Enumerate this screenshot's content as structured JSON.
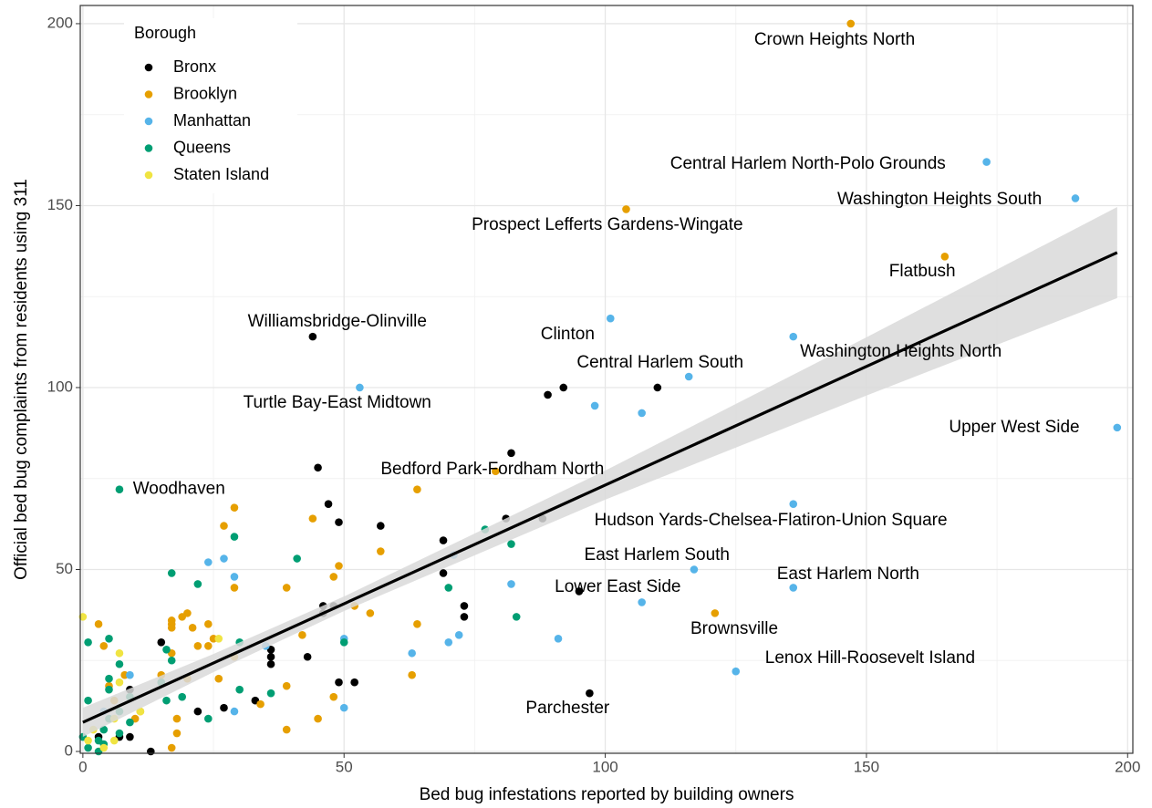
{
  "chart_data": {
    "type": "scatter",
    "x_label": "Bed bug infestations reported by building owners",
    "y_label": "Official bed bug complaints from residents using 311",
    "xlim": [
      -0.5,
      201
    ],
    "ylim": [
      -0.5,
      205
    ],
    "xticks": [
      0,
      50,
      100,
      150,
      200
    ],
    "yticks": [
      0,
      50,
      100,
      150,
      200
    ],
    "minor_xticks": [
      25,
      75,
      125,
      175
    ],
    "minor_yticks": [
      25,
      75,
      125,
      175
    ],
    "grid": true,
    "legend_title": "Borough",
    "legend_position": "top-left",
    "series": [
      {
        "name": "Bronx",
        "color": "#000000",
        "x": [
          44,
          97,
          95,
          89,
          92,
          110,
          82,
          45,
          47,
          49,
          57,
          81,
          88,
          69,
          69,
          46,
          46,
          48,
          73,
          73,
          43,
          36,
          36,
          36,
          49,
          52,
          27,
          22,
          33,
          15,
          9,
          9,
          3,
          7,
          13
        ],
        "y": [
          114,
          16,
          44,
          98,
          100,
          100,
          82,
          78,
          68,
          63,
          62,
          64,
          64,
          58,
          49,
          40,
          38,
          40,
          40,
          37,
          26,
          26,
          24,
          28,
          19,
          19,
          12,
          11,
          14,
          30,
          17,
          4,
          4,
          4,
          0
        ]
      },
      {
        "name": "Brooklyn",
        "color": "#E69F00",
        "x": [
          147,
          104,
          165,
          79,
          121,
          64,
          29,
          27,
          44,
          57,
          49,
          48,
          52,
          64,
          55,
          39,
          42,
          39,
          39,
          45,
          48,
          63,
          29,
          17,
          17,
          19,
          17,
          20,
          21,
          22,
          24,
          25,
          26,
          24,
          29,
          15,
          17,
          20,
          18,
          18,
          8,
          5,
          3,
          4,
          6,
          10,
          11,
          17,
          34
        ],
        "y": [
          200,
          149,
          136,
          77,
          38,
          72,
          67,
          62,
          64,
          55,
          51,
          48,
          40,
          35,
          38,
          45,
          32,
          18,
          6,
          9,
          15,
          21,
          45,
          35,
          36,
          37,
          34,
          38,
          34,
          29,
          35,
          31,
          20,
          29,
          26,
          21,
          27,
          20,
          9,
          5,
          21,
          18,
          35,
          29,
          14,
          9,
          11,
          1,
          13
        ]
      },
      {
        "name": "Manhattan",
        "color": "#56B4E9",
        "x": [
          173,
          190,
          101,
          136,
          116,
          53,
          198,
          136,
          117,
          136,
          125,
          98,
          107,
          71,
          82,
          72,
          70,
          91,
          107,
          63,
          50,
          50,
          24,
          27,
          29,
          29,
          35,
          9,
          4
        ],
        "y": [
          162,
          152,
          119,
          114,
          103,
          100,
          89,
          68,
          50,
          45,
          22,
          95,
          93,
          54,
          46,
          32,
          30,
          31,
          41,
          27,
          31,
          12,
          52,
          53,
          48,
          11,
          29,
          21,
          11
        ]
      },
      {
        "name": "Queens",
        "color": "#009E73",
        "x": [
          7,
          77,
          82,
          83,
          70,
          41,
          29,
          22,
          17,
          50,
          30,
          36,
          24,
          30,
          16,
          16,
          17,
          19,
          15,
          9,
          7,
          7,
          5,
          5,
          1,
          5,
          1,
          5,
          4,
          3,
          0,
          1,
          7,
          9,
          3,
          4
        ],
        "y": [
          72,
          61,
          57,
          37,
          45,
          53,
          59,
          46,
          49,
          30,
          30,
          16,
          9,
          17,
          28,
          14,
          25,
          15,
          19,
          15,
          24,
          11,
          20,
          17,
          30,
          31,
          14,
          9,
          6,
          3,
          4,
          1,
          5,
          8,
          0,
          2
        ]
      },
      {
        "name": "Staten Island",
        "color": "#F0E442",
        "x": [
          0,
          7,
          7,
          26,
          11,
          6,
          2,
          1,
          4,
          6
        ],
        "y": [
          37,
          27,
          19,
          31,
          11,
          9,
          6,
          3,
          1,
          3
        ]
      }
    ],
    "fit": {
      "color": "#000000",
      "x": [
        0,
        198
      ],
      "y": [
        8,
        137.1
      ]
    },
    "band": {
      "color": "#d9d9d9",
      "x": [
        0,
        25,
        50,
        100,
        150,
        198
      ],
      "lower": [
        4,
        21.8,
        38.6,
        69.2,
        97.8,
        124.6
      ],
      "upper": [
        12,
        26.8,
        42.6,
        77.2,
        113.8,
        149.6
      ]
    },
    "labels": [
      {
        "text": "Crown Heights North",
        "x": 143.9,
        "y": 195.5
      },
      {
        "text": "Central Harlem North-Polo Grounds",
        "x": 138.8,
        "y": 161.4
      },
      {
        "text": "Washington Heights South",
        "x": 164,
        "y": 151.6
      },
      {
        "text": "Prospect Lefferts Gardens-Wingate",
        "x": 100.4,
        "y": 144.6
      },
      {
        "text": "Flatbush",
        "x": 160.7,
        "y": 131.8
      },
      {
        "text": "Williamsbridge-Olinville",
        "x": 48.7,
        "y": 118
      },
      {
        "text": "Clinton",
        "x": 92.8,
        "y": 114.5
      },
      {
        "text": "Washington Heights North",
        "x": 156.6,
        "y": 109.8
      },
      {
        "text": "Central Harlem South",
        "x": 110.5,
        "y": 106.8
      },
      {
        "text": "Turtle Bay-East Midtown",
        "x": 48.7,
        "y": 95.7
      },
      {
        "text": "Upper West Side",
        "x": 178.3,
        "y": 89
      },
      {
        "text": "Bedford Park-Fordham North",
        "x": 78.4,
        "y": 77.4
      },
      {
        "text": "Woodhaven",
        "x": 18.4,
        "y": 72
      },
      {
        "text": "Hudson Yards-Chelsea-Flatiron-Union Square",
        "x": 131.7,
        "y": 63.4
      },
      {
        "text": "East Harlem South",
        "x": 109.9,
        "y": 53.9
      },
      {
        "text": "East Harlem North",
        "x": 146.5,
        "y": 48.6
      },
      {
        "text": "Lower East Side",
        "x": 102.4,
        "y": 45.1
      },
      {
        "text": "Brownsville",
        "x": 124.7,
        "y": 33.6
      },
      {
        "text": "Lenox Hill-Roosevelt Island",
        "x": 150.7,
        "y": 25.6
      },
      {
        "text": "Parchester",
        "x": 92.8,
        "y": 11.8
      }
    ]
  }
}
